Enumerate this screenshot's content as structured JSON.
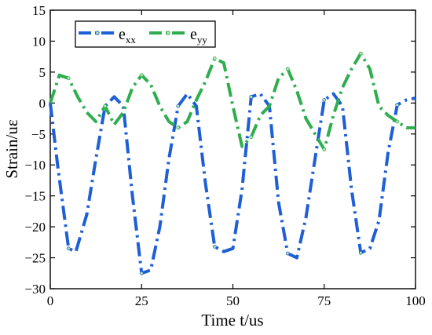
{
  "chart_data": {
    "type": "line",
    "xlabel": "Time t/us",
    "ylabel": "Strain/uε",
    "xlim": [
      0,
      100
    ],
    "ylim": [
      -30,
      15
    ],
    "xticks": [
      0,
      25,
      50,
      75,
      100
    ],
    "yticks": [
      15,
      10,
      5,
      0,
      -5,
      -10,
      -15,
      -20,
      -25,
      -30
    ],
    "legend_position": "top-left",
    "series": [
      {
        "name": "e",
        "name_sub": "xx",
        "color": "#1f5fd6",
        "dash": "dash-dot",
        "x": [
          0,
          2,
          5,
          7,
          10,
          12.5,
          15,
          17.5,
          20,
          22.5,
          25,
          27.5,
          30,
          32.5,
          35,
          37.5,
          40,
          42.5,
          45,
          47.5,
          50,
          52.5,
          55,
          57.5,
          60,
          62.5,
          65,
          67.5,
          70,
          72.5,
          75,
          77.5,
          80,
          82.5,
          85,
          87.5,
          90,
          92.5,
          95,
          97.5,
          100
        ],
        "y": [
          0,
          -10,
          -23.5,
          -24,
          -18,
          -9,
          -0.5,
          1,
          -0.5,
          -15,
          -27.5,
          -27,
          -20,
          -9,
          -0.5,
          1.5,
          -0.5,
          -13,
          -23.2,
          -24,
          -23.5,
          -14,
          1,
          1.5,
          -0.5,
          -16,
          -24.3,
          -25,
          -18.5,
          -9,
          0.5,
          1.5,
          -0.5,
          -14,
          -24.2,
          -23.5,
          -19,
          -8,
          -0.3,
          0.5,
          0.8
        ]
      },
      {
        "name": "e",
        "name_sub": "yy",
        "color": "#2eae4f",
        "dash": "dash-dot",
        "x": [
          0,
          2.5,
          5,
          7.5,
          10,
          12.5,
          15,
          17.5,
          20,
          22.5,
          25,
          27.5,
          30,
          32.5,
          35,
          37.5,
          40,
          42.5,
          45,
          47.5,
          50,
          52.5,
          55,
          57.5,
          60,
          62.5,
          65,
          67.5,
          70,
          72.5,
          75,
          77.5,
          80,
          82.5,
          85,
          87.5,
          90,
          92.5,
          95,
          97.5,
          100
        ],
        "y": [
          0,
          4.5,
          4.0,
          1,
          -1.5,
          -3,
          -0.5,
          -3.5,
          -1.5,
          2.5,
          4.5,
          3,
          -0.5,
          -3,
          -4,
          -3,
          0.5,
          3.5,
          7.2,
          6.5,
          -0.5,
          -7,
          -5.5,
          -2,
          -0.5,
          4,
          5.5,
          2,
          -2.5,
          -5,
          -7.5,
          -2,
          2.5,
          5.5,
          8,
          5.5,
          -0.5,
          -2,
          -3,
          -4,
          -4
        ]
      }
    ]
  }
}
